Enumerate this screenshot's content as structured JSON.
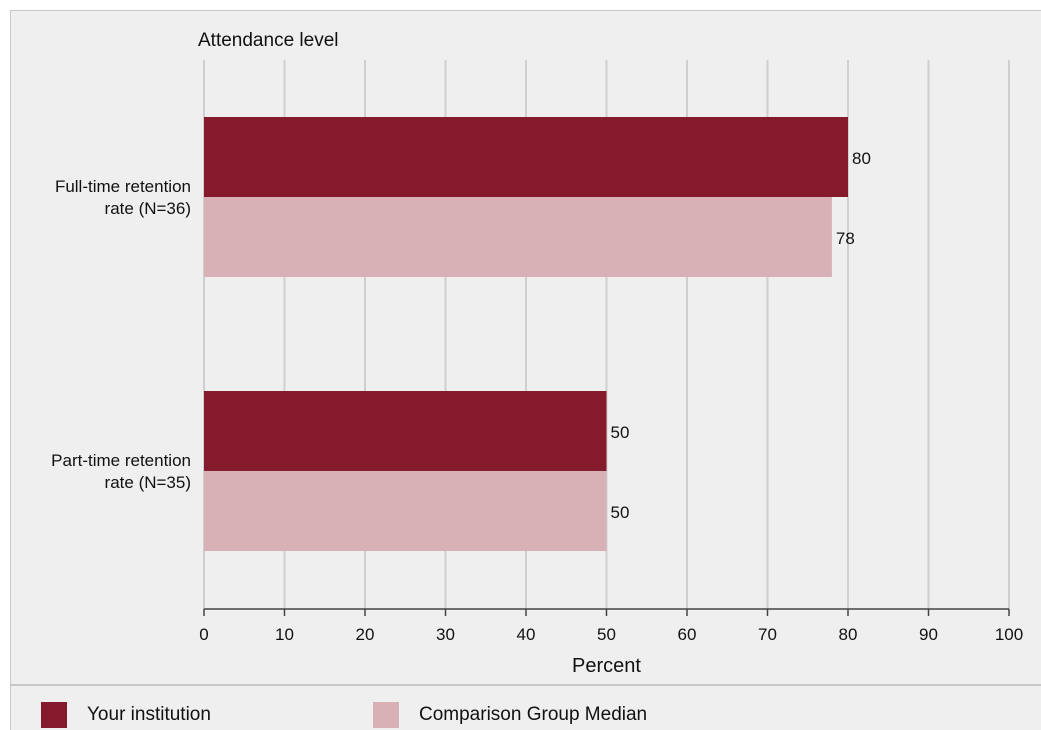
{
  "chart_data": {
    "type": "bar",
    "orientation": "horizontal",
    "title": "Attendance level",
    "xlabel": "Percent",
    "ylabel": "",
    "xlim": [
      0,
      100
    ],
    "xticks": [
      0,
      10,
      20,
      30,
      40,
      50,
      60,
      70,
      80,
      90,
      100
    ],
    "grid": true,
    "legend_position": "bottom",
    "categories": [
      [
        "Full-time retention",
        "rate (N=36)"
      ],
      [
        "Part-time retention",
        "rate (N=35)"
      ]
    ],
    "series": [
      {
        "name": "Your institution",
        "color": "#841a2b",
        "values": [
          80,
          50
        ]
      },
      {
        "name": "Comparison Group Median",
        "color": "#d8b1b7",
        "values": [
          78,
          50
        ]
      }
    ]
  }
}
